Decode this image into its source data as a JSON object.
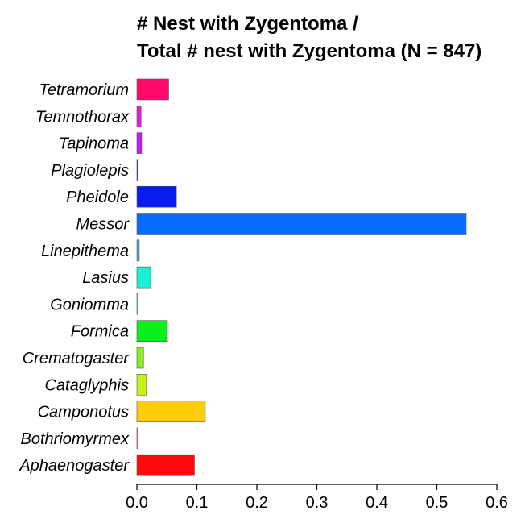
{
  "chart_data": {
    "type": "bar",
    "orientation": "horizontal",
    "title_lines": [
      "# Nest with Zygentoma /",
      "Total # nest with Zygentoma (N = 847)"
    ],
    "xlabel": "",
    "ylabel": "",
    "xlim": [
      0,
      0.6
    ],
    "x_ticks": [
      "0.0",
      "0.1",
      "0.2",
      "0.3",
      "0.4",
      "0.5",
      "0.6"
    ],
    "grid": false,
    "legend": "none",
    "categories": [
      "Tetramorium",
      "Temnothorax",
      "Tapinoma",
      "Plagiolepis",
      "Pheidole",
      "Messor",
      "Linepithema",
      "Lasius",
      "Goniomma",
      "Formica",
      "Crematogaster",
      "Cataglyphis",
      "Camponotus",
      "Bothriomyrmex",
      "Aphaenogaster"
    ],
    "values": [
      0.053,
      0.007,
      0.008,
      0.002,
      0.066,
      0.549,
      0.004,
      0.023,
      0.001,
      0.051,
      0.011,
      0.016,
      0.114,
      0.002,
      0.096
    ],
    "colors": [
      "#FF0A6C",
      "#E81CD6",
      "#C41CF0",
      "#6A1CF0",
      "#0A1CF0",
      "#0A6CFF",
      "#3AB8E0",
      "#1CF0D4",
      "#6AA8A0",
      "#0AF01C",
      "#84F01C",
      "#C8F01C",
      "#FFCC0A",
      "#D07070",
      "#FF0A0A"
    ]
  }
}
